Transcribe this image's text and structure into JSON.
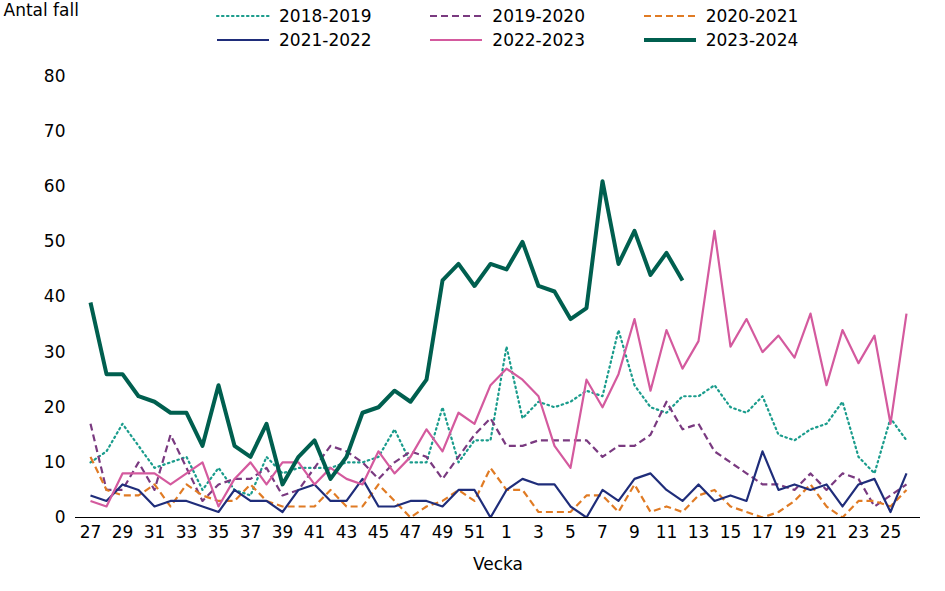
{
  "chart_data": {
    "type": "line",
    "x_label": "Vecka",
    "y_label": "Antal fall",
    "categories": [
      27,
      null,
      29,
      null,
      31,
      null,
      33,
      null,
      35,
      null,
      37,
      null,
      39,
      null,
      41,
      null,
      43,
      null,
      45,
      null,
      47,
      null,
      49,
      null,
      51,
      null,
      1,
      null,
      3,
      null,
      5,
      null,
      7,
      null,
      9,
      null,
      11,
      null,
      13,
      null,
      15,
      null,
      17,
      null,
      19,
      null,
      21,
      null,
      23,
      null,
      25,
      null
    ],
    "ylim": [
      0,
      80
    ],
    "yticks": [
      0,
      10,
      20,
      30,
      40,
      50,
      60,
      70,
      80
    ],
    "grid": false,
    "legend": "top",
    "series": [
      {
        "name": "2018-2019",
        "color": "#1a9c8c",
        "line_style": "dotted",
        "values": [
          10,
          12,
          17,
          13,
          9,
          10,
          11,
          5,
          9,
          5,
          4,
          11,
          8,
          9,
          9,
          9,
          10,
          10,
          11,
          16,
          10,
          10,
          20,
          10,
          14,
          14,
          31,
          18,
          21,
          20,
          21,
          23,
          22,
          34,
          24,
          20,
          19,
          22,
          22,
          24,
          20,
          19,
          22,
          15,
          14,
          16,
          17,
          21,
          11,
          8,
          18,
          14
        ]
      },
      {
        "name": "2019-2020",
        "color": "#7a3a80",
        "line_style": "dashed",
        "values": [
          17,
          5,
          5,
          10,
          5,
          15,
          9,
          3,
          6,
          7,
          7,
          9,
          4,
          5,
          9,
          13,
          12,
          10,
          7,
          10,
          12,
          11,
          7,
          11,
          15,
          18,
          13,
          13,
          14,
          14,
          14,
          14,
          11,
          13,
          13,
          15,
          21,
          16,
          17,
          12,
          10,
          8,
          6,
          6,
          5,
          8,
          5,
          8,
          7,
          2,
          4,
          6
        ]
      },
      {
        "name": "2020-2021",
        "color": "#e07b24",
        "line_style": "dashed",
        "values": [
          11,
          5,
          4,
          4,
          6,
          2,
          6,
          4,
          3,
          3,
          6,
          3,
          2,
          2,
          2,
          5,
          2,
          2,
          6,
          3,
          0,
          2,
          3,
          5,
          3,
          9,
          5,
          5,
          1,
          1,
          1,
          4,
          4,
          1,
          6,
          1,
          2,
          1,
          4,
          5,
          2,
          1,
          0,
          1,
          3,
          6,
          2,
          0,
          3,
          3,
          2,
          5
        ]
      },
      {
        "name": "2021-2022",
        "color": "#1f2d7a",
        "line_style": "solid",
        "values": [
          4,
          3,
          6,
          5,
          2,
          3,
          3,
          2,
          1,
          5,
          3,
          3,
          1,
          5,
          6,
          3,
          3,
          7,
          2,
          2,
          3,
          3,
          2,
          5,
          5,
          0,
          5,
          7,
          6,
          6,
          2,
          0,
          5,
          3,
          7,
          8,
          5,
          3,
          6,
          3,
          4,
          3,
          12,
          5,
          6,
          5,
          6,
          2,
          6,
          7,
          1,
          8
        ]
      },
      {
        "name": "2022-2023",
        "color": "#d45a9e",
        "line_style": "solid",
        "values": [
          3,
          2,
          8,
          8,
          8,
          6,
          8,
          10,
          2,
          7,
          10,
          6,
          10,
          10,
          6,
          9,
          7,
          6,
          12,
          8,
          11,
          16,
          12,
          19,
          17,
          24,
          27,
          25,
          22,
          13,
          9,
          25,
          20,
          26,
          36,
          23,
          34,
          27,
          32,
          52,
          31,
          36,
          30,
          33,
          29,
          37,
          24,
          34,
          28,
          33,
          17,
          37
        ]
      },
      {
        "name": "2023-2024",
        "color": "#005f4f",
        "line_style": "solid",
        "values": [
          39,
          26,
          26,
          22,
          21,
          19,
          19,
          13,
          24,
          13,
          11,
          17,
          6,
          11,
          14,
          7,
          11,
          19,
          20,
          23,
          21,
          25,
          43,
          46,
          42,
          46,
          45,
          50,
          42,
          41,
          36,
          38,
          61,
          46,
          52,
          44,
          48,
          43,
          null,
          null,
          null,
          null,
          null,
          null,
          null,
          null,
          null,
          null,
          null,
          null,
          null,
          null
        ]
      }
    ]
  }
}
